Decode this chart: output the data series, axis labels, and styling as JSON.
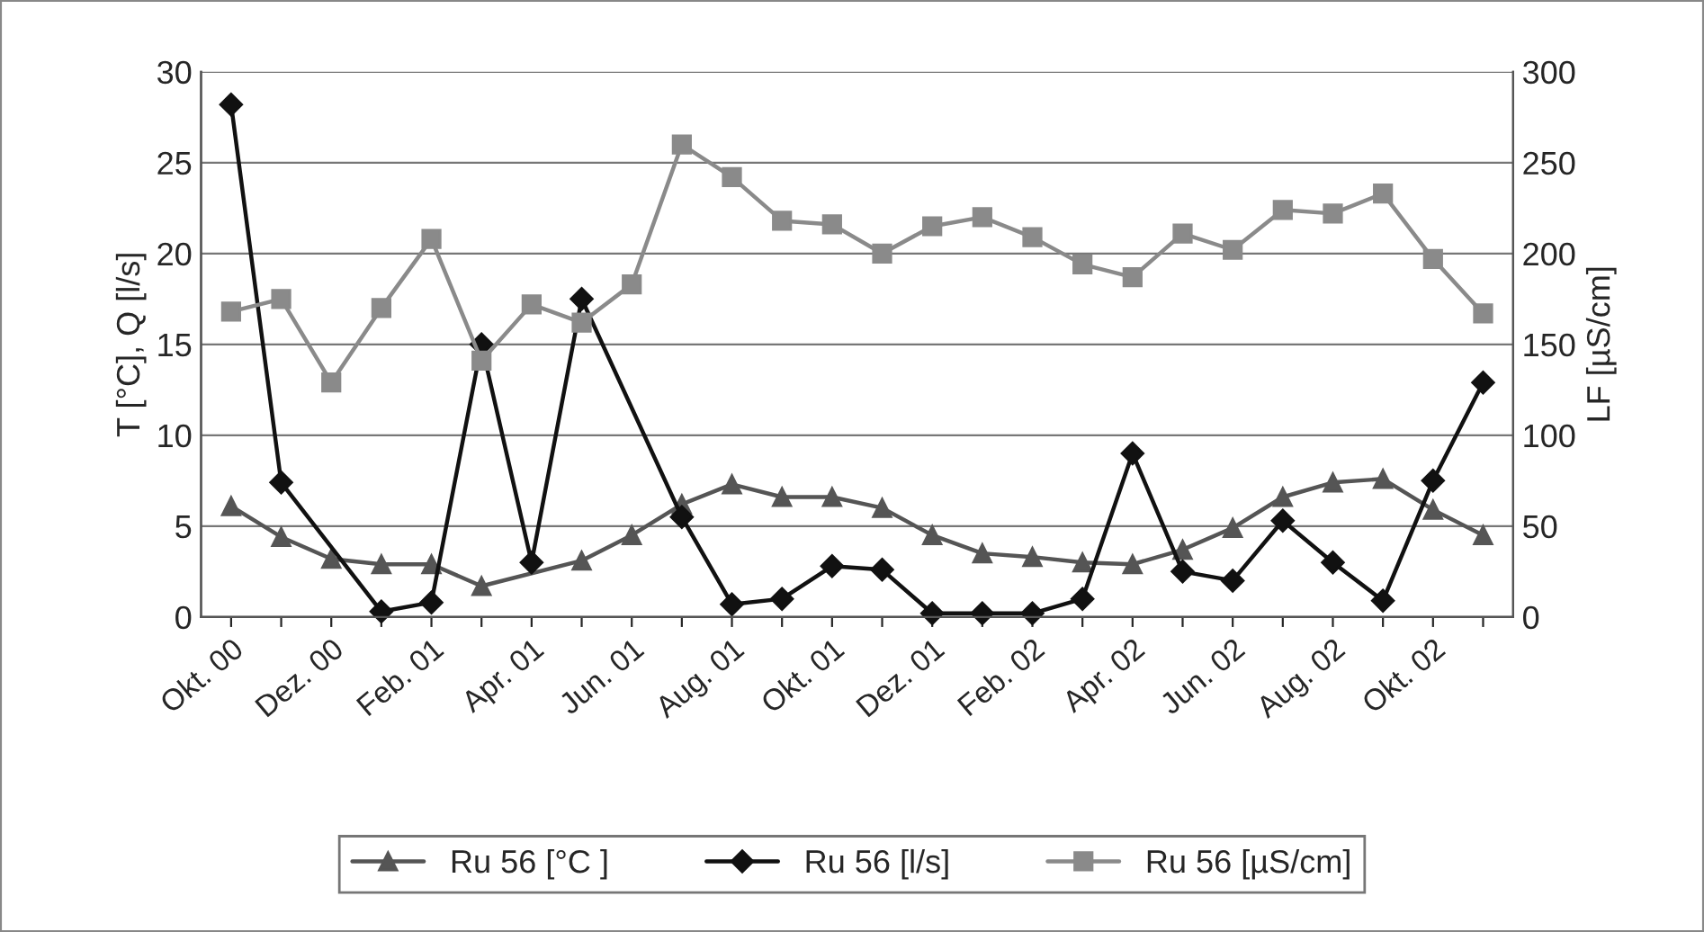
{
  "chart_data": {
    "type": "line",
    "ylabel": "T [°C], Q [l/s]",
    "y2label": "LF [µS/cm]",
    "categories": [
      "Okt. 00",
      null,
      "Dez. 00",
      null,
      "Feb. 01",
      null,
      "Apr. 01",
      null,
      "Jun. 01",
      null,
      "Aug. 01",
      null,
      "Okt. 01",
      null,
      "Dez. 01",
      null,
      "Feb. 02",
      null,
      "Apr. 02",
      null,
      "Jun. 02",
      null,
      "Aug. 02",
      null,
      "Okt. 02",
      null
    ],
    "series": [
      {
        "name": "Ru 56 [°C ]",
        "color": "#555555",
        "marker": "triangle",
        "values": [
          6.1,
          4.4,
          3.2,
          2.9,
          2.9,
          1.7,
          null,
          3.1,
          4.5,
          6.2,
          7.3,
          6.6,
          6.6,
          6.0,
          4.5,
          3.5,
          3.3,
          3.0,
          2.9,
          3.7,
          4.9,
          6.6,
          7.4,
          7.6,
          5.9,
          4.5
        ]
      },
      {
        "name": "Ru 56 [l/s]",
        "color": "#111111",
        "marker": "diamond",
        "values": [
          28.2,
          7.4,
          null,
          0.3,
          0.8,
          15.0,
          3.0,
          17.5,
          null,
          5.5,
          0.7,
          1.0,
          2.8,
          2.6,
          0.2,
          0.2,
          0.2,
          1.0,
          9.0,
          2.5,
          2.0,
          5.3,
          3.0,
          0.9,
          7.5,
          12.9
        ]
      },
      {
        "name": "Ru 56 [µS/cm]",
        "color": "#8a8a8a",
        "marker": "square",
        "axis": "y2",
        "values": [
          168,
          175,
          129,
          170,
          208,
          141,
          172,
          162,
          183,
          260,
          242,
          218,
          216,
          200,
          215,
          220,
          209,
          194,
          187,
          211,
          202,
          224,
          222,
          233,
          197,
          167
        ]
      }
    ],
    "ylim": [
      0,
      30
    ],
    "yticks": [
      0,
      5,
      10,
      15,
      20,
      25,
      30
    ],
    "y2lim": [
      0,
      300
    ],
    "y2ticks": [
      0,
      50,
      100,
      150,
      200,
      250,
      300
    ],
    "grid": "y",
    "legend": "bottom",
    "line_style": "solid"
  }
}
